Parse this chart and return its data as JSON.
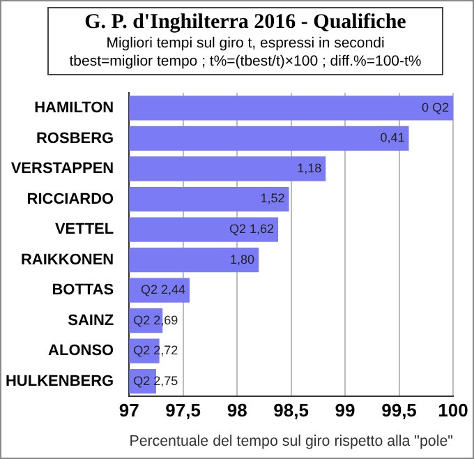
{
  "chart_data": {
    "type": "bar",
    "orientation": "horizontal",
    "title": "G. P. d'Inghilterra 2016 - Qualifiche",
    "subtitle": "Migliori tempi sul giro t, espressi in secondi\ntbest=miglior tempo ; t%=(tbest/t)×100 ; diff.%=100-t%",
    "xlabel": "Percentuale del tempo sul giro rispetto alla \"pole\"",
    "categories": [
      "HAMILTON",
      "ROSBERG",
      "VERSTAPPEN",
      "RICCIARDO",
      "VETTEL",
      "RAIKKONEN",
      "BOTTAS",
      "SAINZ",
      "ALONSO",
      "HULKENBERG"
    ],
    "series": [
      {
        "color": "#7b7bf6",
        "values": [
          100,
          99.59,
          98.82,
          98.48,
          98.38,
          98.2,
          97.56,
          97.31,
          97.28,
          97.25
        ]
      }
    ],
    "annotations": [
      {
        "text": "0 Q2",
        "x": 100,
        "y": "HAMILTON"
      },
      {
        "text": "0,41",
        "x": 99.59,
        "y": "ROSBERG"
      },
      {
        "text": "1,18",
        "x": 98.82,
        "y": "VERSTAPPEN"
      },
      {
        "text": "1,52",
        "x": 98.48,
        "y": "RICCIARDO"
      },
      {
        "text": "Q2 1,62",
        "x": 98.38,
        "y": "VETTEL"
      },
      {
        "text": "1,80",
        "x": 98.2,
        "y": "RAIKKONEN"
      },
      {
        "text": "Q2 2,44",
        "x": 97.56,
        "y": "BOTTAS"
      },
      {
        "text": "Q2 2,69",
        "x": 97.31,
        "y": "SAINZ"
      },
      {
        "text": "Q2 2,72",
        "x": 97.28,
        "y": "ALONSO"
      },
      {
        "text": "Q2 2,75",
        "x": 97.25,
        "y": "HULKENBERG"
      }
    ],
    "xlim": [
      97,
      100
    ],
    "xticks": [
      97,
      {
        "value": 97.5,
        "label": "97,5"
      },
      98,
      {
        "value": 98.5,
        "label": "98,5"
      },
      99,
      {
        "value": 99.5,
        "label": "99,5"
      },
      100
    ],
    "grid": "x",
    "legend": false
  }
}
